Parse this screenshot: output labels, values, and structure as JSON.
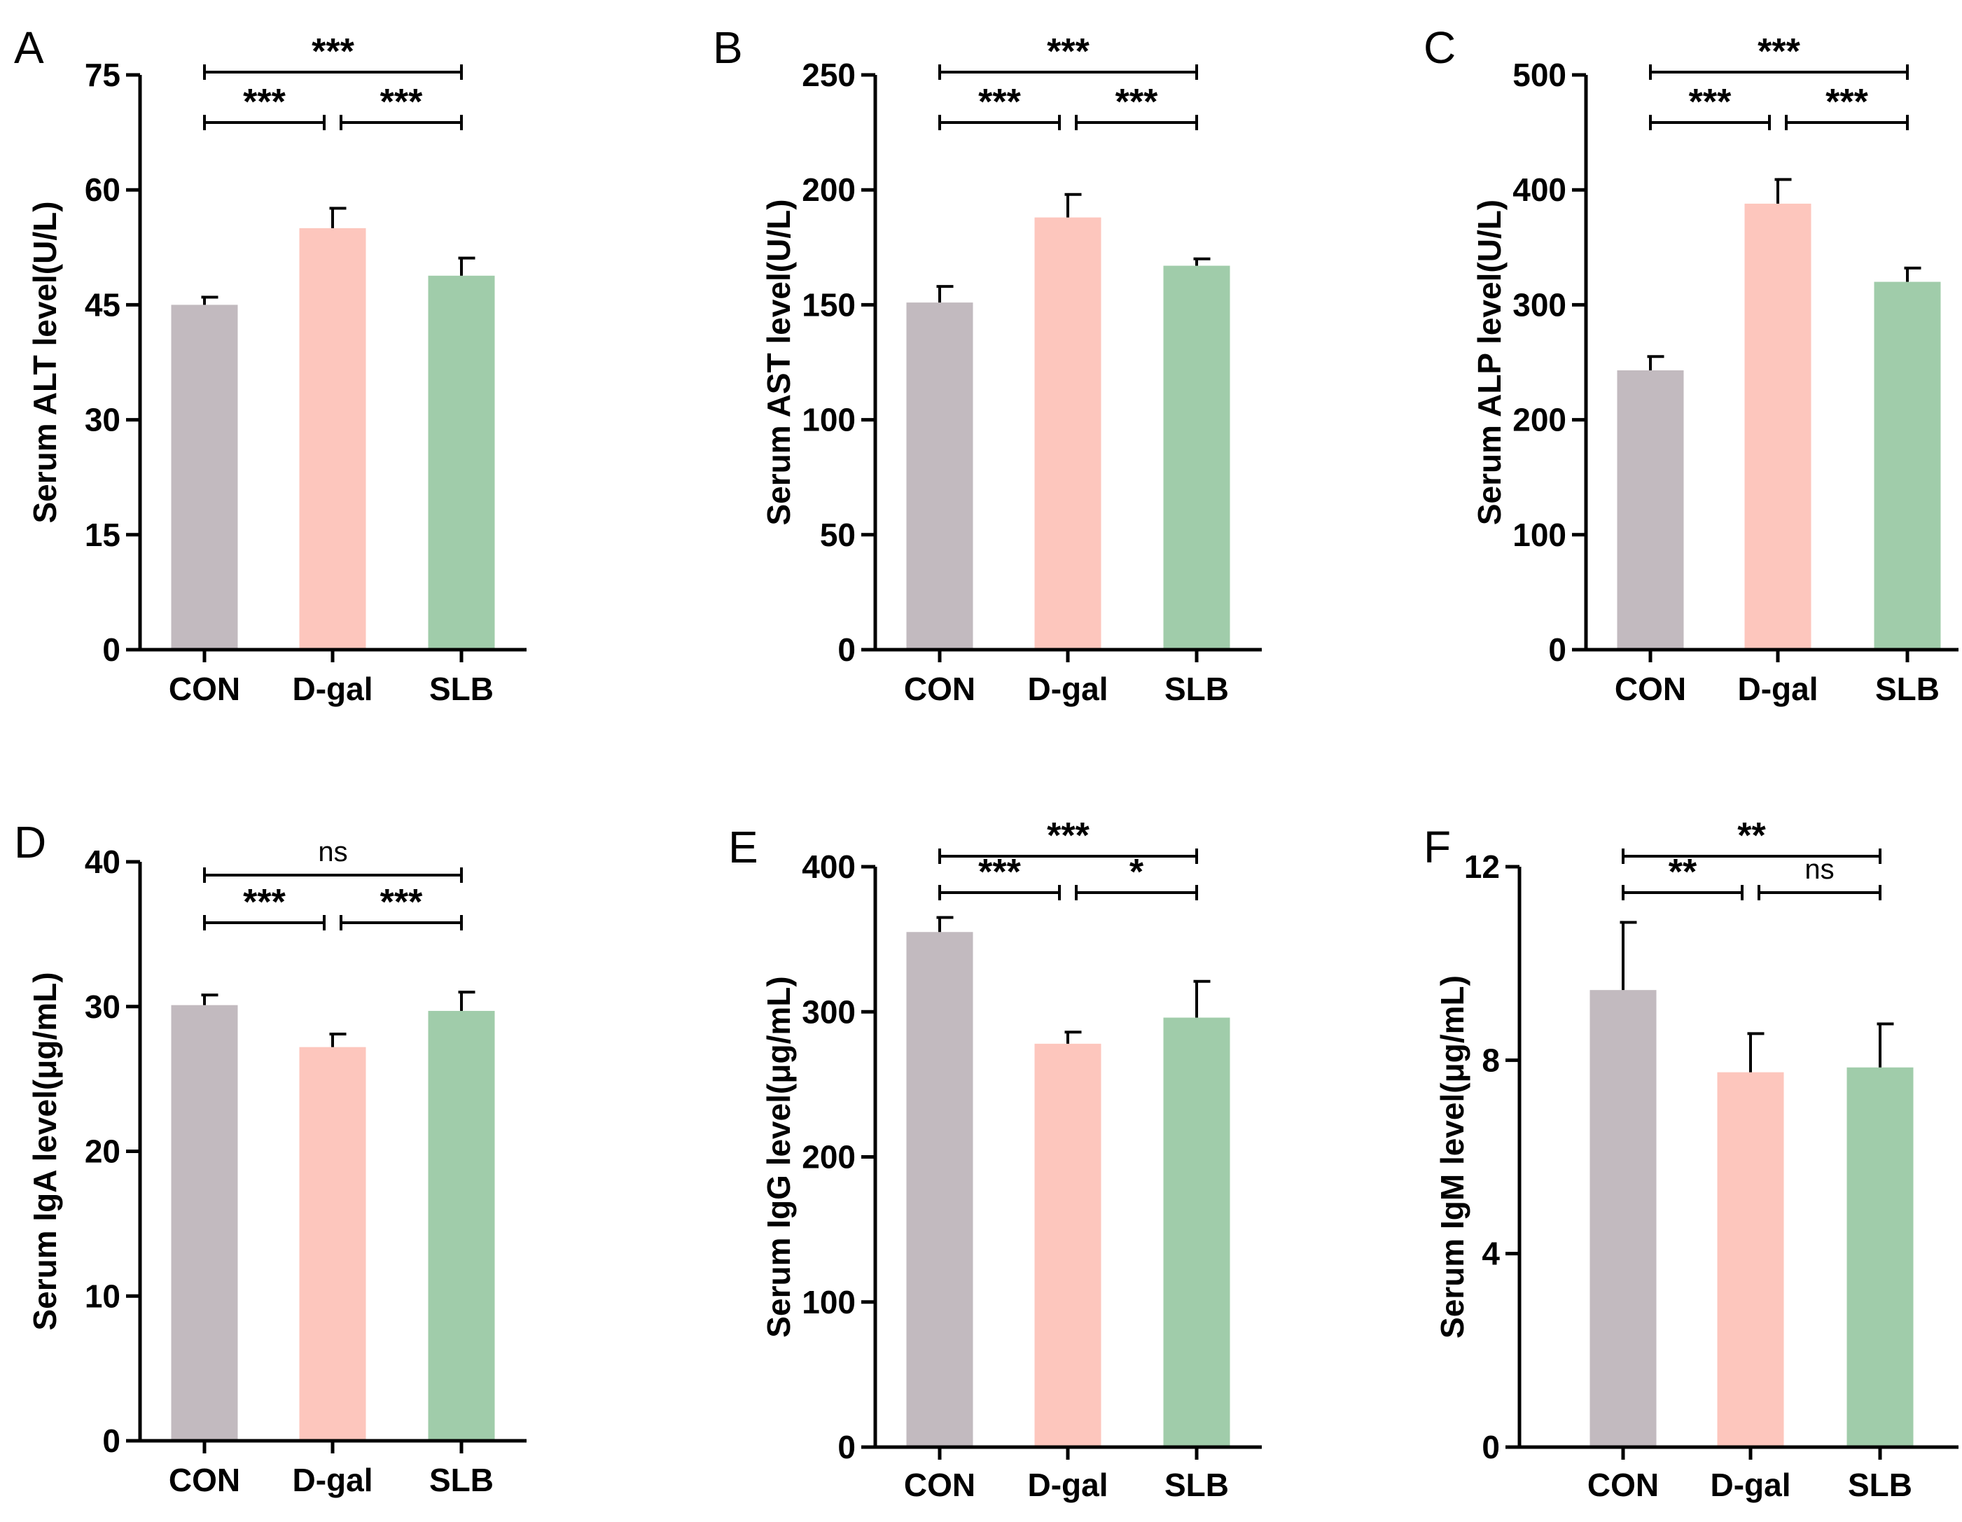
{
  "figure": {
    "colors": {
      "CON": "#c2babf",
      "D-gal": "#fdc6bd",
      "SLB": "#a0ccaa",
      "axis": "#000000"
    }
  },
  "chart_data": [
    {
      "panel": "A",
      "type": "bar",
      "categories": [
        "CON",
        "D-gal",
        "SLB"
      ],
      "values": [
        45,
        55,
        48.8
      ],
      "errors": [
        1,
        2.6,
        2.3
      ],
      "ylabel": "Serum ALT level(U/L)",
      "ylim": [
        0,
        75
      ],
      "yticks": [
        0,
        15,
        30,
        45,
        60,
        75
      ],
      "significance": [
        {
          "from": 0,
          "to": 2,
          "label": "***",
          "level": "top"
        },
        {
          "from": 0,
          "to": 1,
          "label": "***",
          "level": "bottom"
        },
        {
          "from": 1,
          "to": 2,
          "label": "***",
          "level": "bottom"
        }
      ]
    },
    {
      "panel": "B",
      "type": "bar",
      "categories": [
        "CON",
        "D-gal",
        "SLB"
      ],
      "values": [
        151,
        188,
        167
      ],
      "errors": [
        7,
        10,
        3
      ],
      "ylabel": "Serum AST level(U/L)",
      "ylim": [
        0,
        250
      ],
      "yticks": [
        0,
        50,
        100,
        150,
        200,
        250
      ],
      "significance": [
        {
          "from": 0,
          "to": 2,
          "label": "***",
          "level": "top"
        },
        {
          "from": 0,
          "to": 1,
          "label": "***",
          "level": "bottom"
        },
        {
          "from": 1,
          "to": 2,
          "label": "***",
          "level": "bottom"
        }
      ]
    },
    {
      "panel": "C",
      "type": "bar",
      "categories": [
        "CON",
        "D-gal",
        "SLB"
      ],
      "values": [
        243,
        388,
        320
      ],
      "errors": [
        12,
        21,
        12
      ],
      "ylabel": "Serum ALP level(U/L)",
      "ylim": [
        0,
        500
      ],
      "yticks": [
        0,
        100,
        200,
        300,
        400,
        500
      ],
      "significance": [
        {
          "from": 0,
          "to": 2,
          "label": "***",
          "level": "top"
        },
        {
          "from": 0,
          "to": 1,
          "label": "***",
          "level": "bottom"
        },
        {
          "from": 1,
          "to": 2,
          "label": "***",
          "level": "bottom"
        }
      ]
    },
    {
      "panel": "D",
      "type": "bar",
      "categories": [
        "CON",
        "D-gal",
        "SLB"
      ],
      "values": [
        30.1,
        27.2,
        29.7
      ],
      "errors": [
        0.7,
        0.9,
        1.3
      ],
      "ylabel": "Serum IgA level(μg/mL)",
      "ylim": [
        0,
        40
      ],
      "yticks": [
        0,
        10,
        20,
        30,
        40
      ],
      "significance": [
        {
          "from": 0,
          "to": 2,
          "label": "ns",
          "level": "top"
        },
        {
          "from": 0,
          "to": 1,
          "label": "***",
          "level": "bottom"
        },
        {
          "from": 1,
          "to": 2,
          "label": "***",
          "level": "bottom"
        }
      ]
    },
    {
      "panel": "E",
      "type": "bar",
      "categories": [
        "CON",
        "D-gal",
        "SLB"
      ],
      "values": [
        355,
        278,
        296
      ],
      "errors": [
        10,
        8,
        25
      ],
      "ylabel": "Serum IgG level(μg/mL)",
      "ylim": [
        0,
        400
      ],
      "yticks": [
        0,
        100,
        200,
        300,
        400
      ],
      "significance": [
        {
          "from": 0,
          "to": 2,
          "label": "***",
          "level": "top"
        },
        {
          "from": 0,
          "to": 1,
          "label": "***",
          "level": "bottom"
        },
        {
          "from": 1,
          "to": 2,
          "label": "*",
          "level": "bottom"
        }
      ]
    },
    {
      "panel": "F",
      "type": "bar",
      "categories": [
        "CON",
        "D-gal",
        "SLB"
      ],
      "values": [
        9.45,
        7.75,
        7.85
      ],
      "errors": [
        1.4,
        0.8,
        0.9
      ],
      "ylabel": "Serum IgM level(μg/mL)",
      "ylim": [
        0,
        12
      ],
      "yticks": [
        0,
        4,
        8,
        12
      ],
      "significance": [
        {
          "from": 0,
          "to": 2,
          "label": "**",
          "level": "top"
        },
        {
          "from": 0,
          "to": 1,
          "label": "**",
          "level": "bottom"
        },
        {
          "from": 1,
          "to": 2,
          "label": "ns",
          "level": "bottom"
        }
      ]
    }
  ]
}
